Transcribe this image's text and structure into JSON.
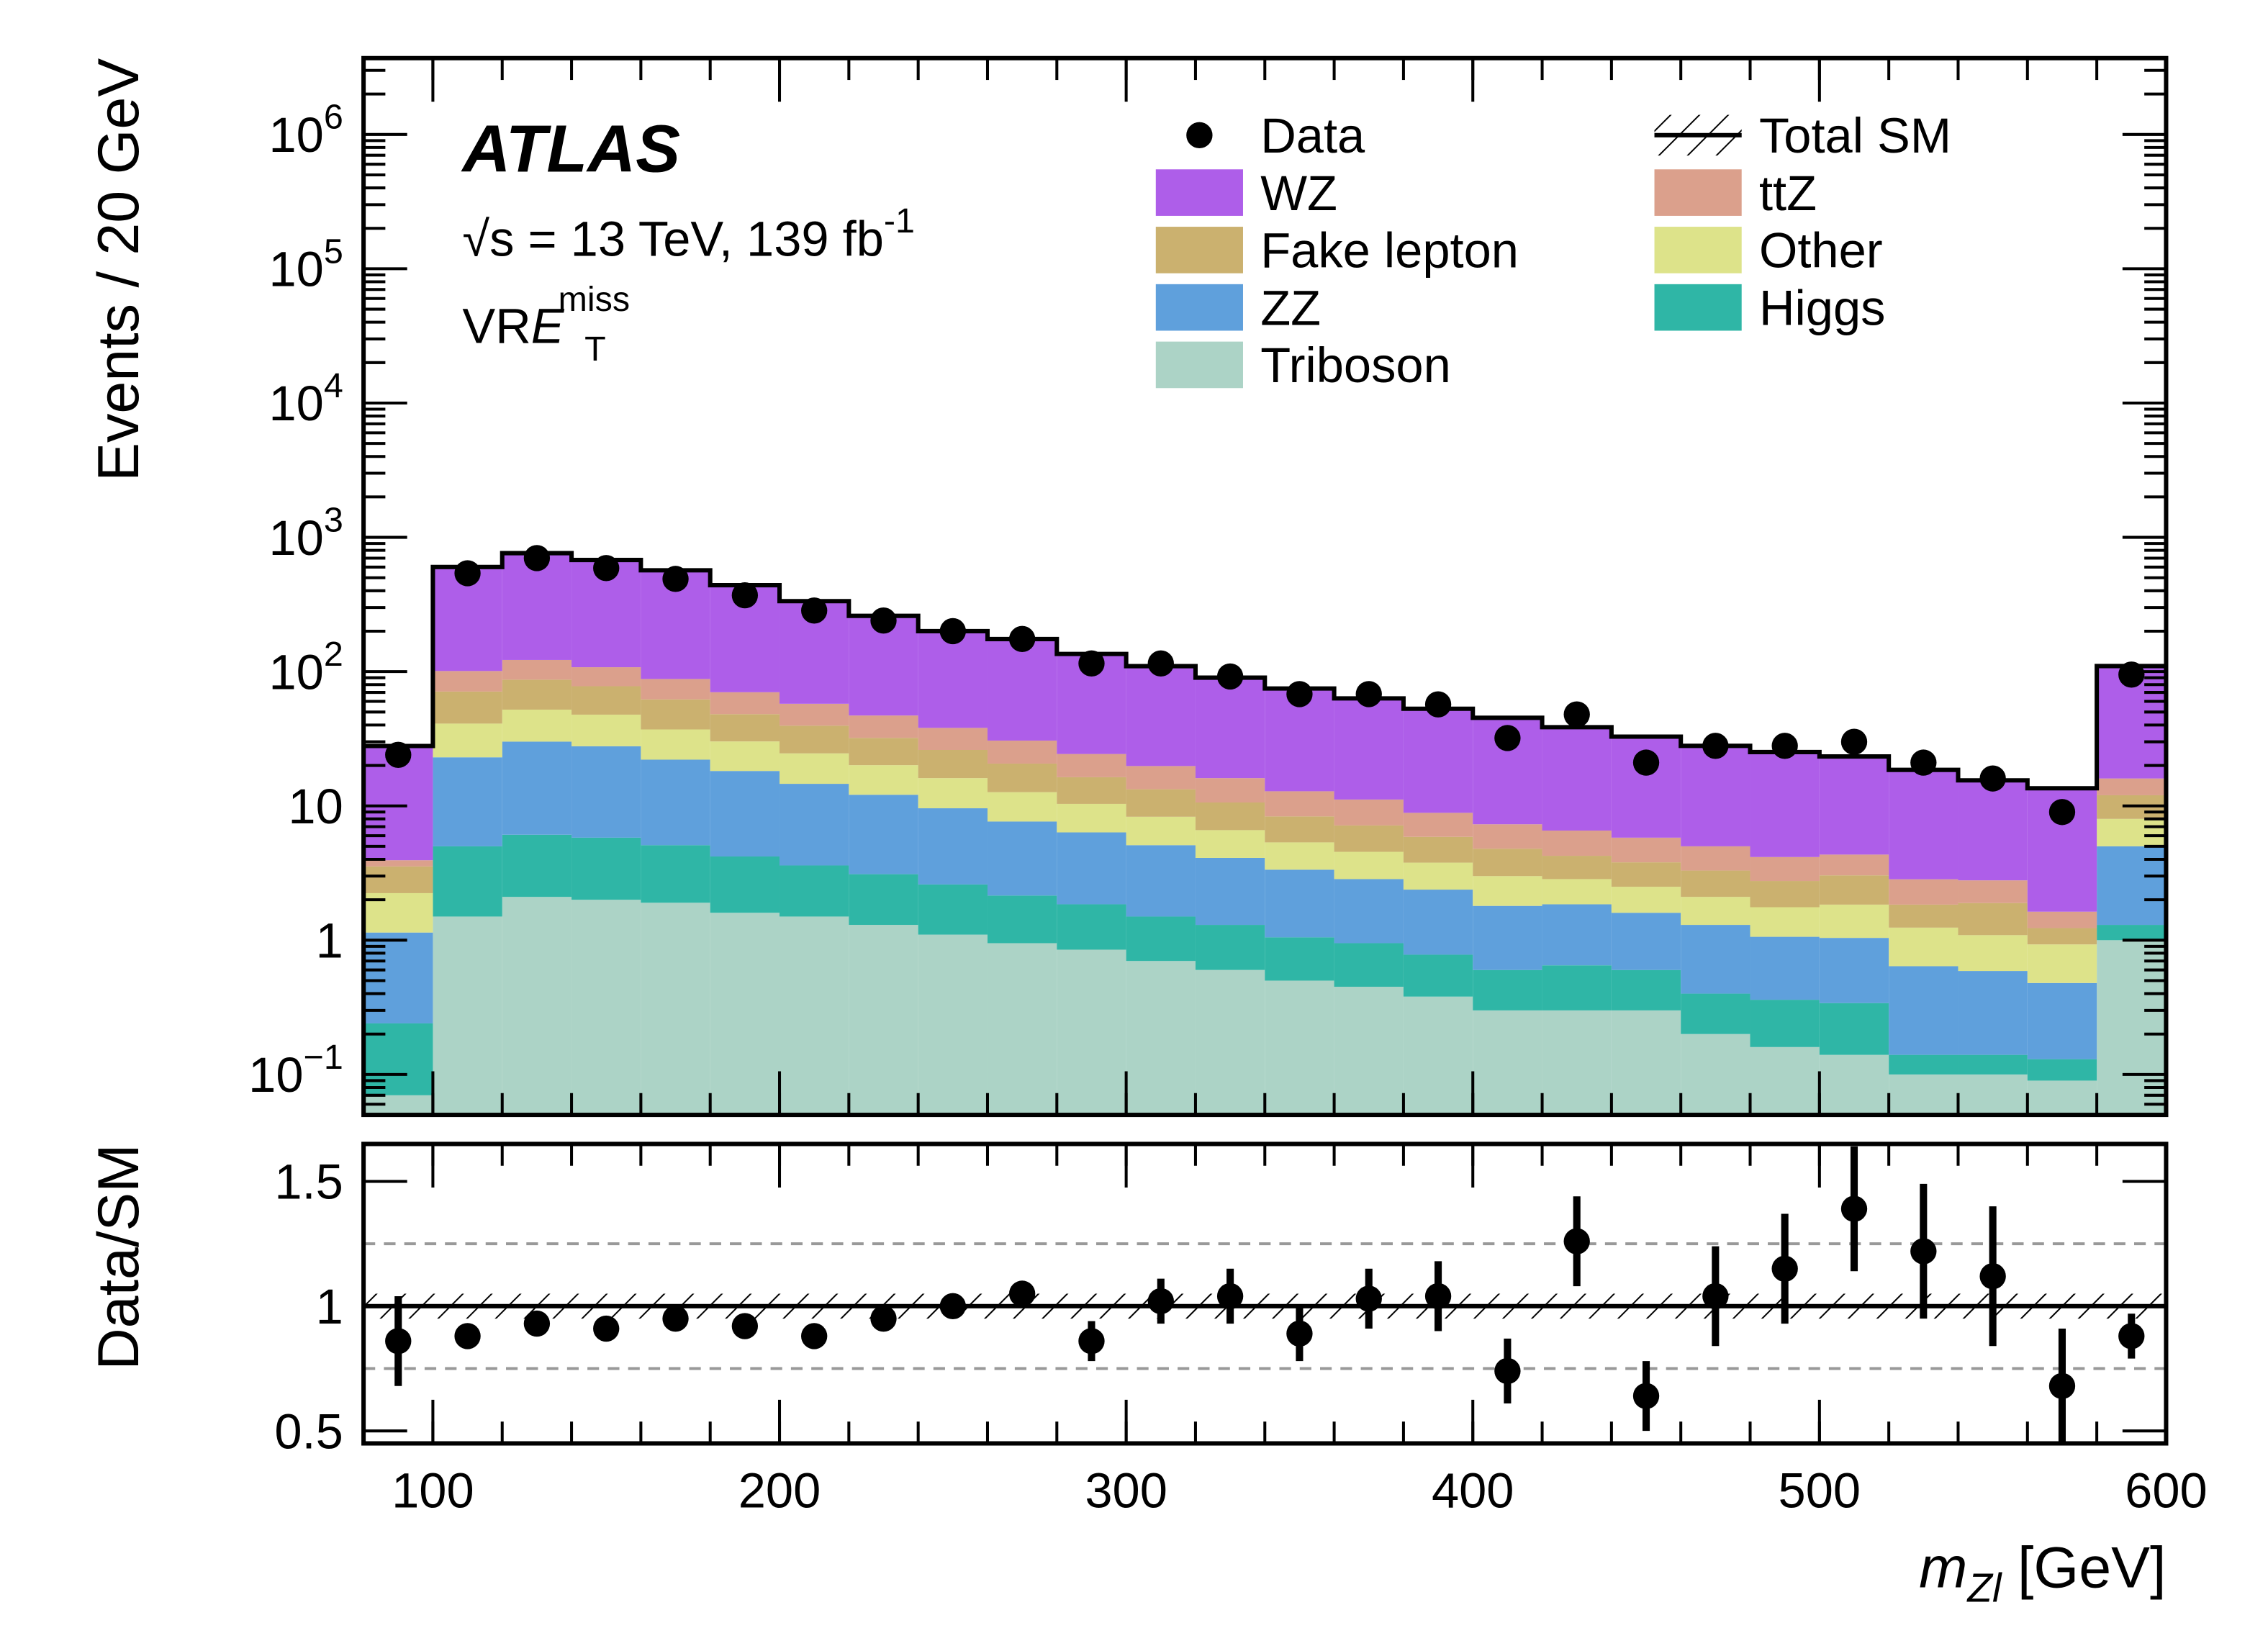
{
  "chart_data": [
    {
      "type": "histogram",
      "ylabel": "Events / 20 GeV",
      "annotations": {
        "experiment": "ATLAS",
        "energy": "√s = 13 TeV, 139 fb",
        "energy_sup": "-1",
        "region": "VR",
        "region_symbol": "E",
        "region_sub": "T",
        "region_sup": "miss"
      },
      "log_y": true,
      "xlim": [
        80,
        600
      ],
      "ylim": [
        0.05,
        3700000
      ],
      "yticks": [
        {
          "value": 0.1,
          "label": "10",
          "sup": "−1"
        },
        1,
        10,
        {
          "value": 100,
          "label": "10",
          "sup": "2"
        },
        {
          "value": 1000,
          "label": "10",
          "sup": "3"
        },
        {
          "value": 10000,
          "label": "10",
          "sup": "4"
        },
        {
          "value": 100000,
          "label": "10",
          "sup": "5"
        },
        {
          "value": 1000000,
          "label": "10",
          "sup": "6"
        }
      ],
      "bins": [
        80,
        100,
        120,
        140,
        160,
        180,
        200,
        220,
        240,
        260,
        280,
        300,
        320,
        340,
        360,
        380,
        400,
        420,
        440,
        460,
        480,
        500,
        520,
        540,
        560,
        580,
        600
      ],
      "series": [
        {
          "name": "Triboson",
          "color": "#acd3c6",
          "values": [
            0.07,
            1.5,
            2.1,
            2.0,
            1.9,
            1.6,
            1.5,
            1.3,
            1.1,
            0.95,
            0.85,
            0.7,
            0.6,
            0.5,
            0.45,
            0.38,
            0.3,
            0.3,
            0.3,
            0.2,
            0.16,
            0.14,
            0.1,
            0.1,
            0.09,
            1.0
          ]
        },
        {
          "name": "Higgs",
          "color": "#2fb6a6",
          "values": [
            0.17,
            3.5,
            4,
            3.8,
            3.2,
            2.6,
            2.1,
            1.8,
            1.5,
            1.2,
            1.0,
            0.8,
            0.7,
            0.55,
            0.5,
            0.4,
            0.3,
            0.35,
            0.3,
            0.2,
            0.2,
            0.2,
            0.04,
            0.04,
            0.04,
            0.3
          ]
        },
        {
          "name": "ZZ",
          "color": "#5fa0dc",
          "values": [
            0.9,
            18,
            24,
            22,
            17,
            14,
            11,
            9,
            7,
            5.5,
            4.5,
            3.6,
            2.8,
            2.3,
            1.9,
            1.6,
            1.2,
            1.2,
            1.0,
            0.9,
            0.7,
            0.7,
            0.5,
            0.45,
            0.35,
            3.7
          ]
        },
        {
          "name": "Other",
          "color": "#dde38a",
          "values": [
            1.1,
            18,
            22,
            20,
            15,
            12,
            10,
            8,
            6.5,
            5,
            4,
            3.2,
            2.5,
            2,
            1.7,
            1.4,
            1.2,
            1.0,
            0.9,
            0.8,
            0.7,
            0.8,
            0.6,
            0.5,
            0.45,
            3
          ]
        },
        {
          "name": "Fake lepton",
          "color": "#cbb16f",
          "values": [
            1.3,
            30,
            35,
            30,
            25,
            18,
            15,
            12,
            10,
            8,
            6,
            5,
            4,
            3,
            2.6,
            2.1,
            1.8,
            1.4,
            1.3,
            1.2,
            1.0,
            1.2,
            0.6,
            0.8,
            0.3,
            4
          ]
        },
        {
          "name": "ttZ",
          "color": "#dba08c",
          "values": [
            0.4,
            30,
            35,
            30,
            26,
            22,
            18,
            15,
            12,
            10,
            8,
            6.5,
            5.5,
            4.5,
            4,
            3,
            2.5,
            2.3,
            2,
            1.7,
            1.4,
            1.3,
            1.0,
            0.9,
            0.4,
            4
          ]
        },
        {
          "name": "WZ",
          "color": "#ae5ee9",
          "values": [
            24,
            500,
            640,
            570,
            480,
            370,
            277,
            213,
            162,
            144,
            111,
            90,
            74,
            62,
            52,
            44,
            38,
            32,
            27,
            23,
            21,
            19,
            15.7,
            12.7,
            11.9,
            94
          ]
        }
      ],
      "data_points": {
        "name": "Data",
        "color": "#000000",
        "values": [
          24,
          540,
          700,
          590,
          490,
          370,
          285,
          240,
          200,
          175,
          115,
          115,
          92,
          68,
          68,
          57,
          32,
          48,
          21,
          28,
          28,
          30,
          21,
          16,
          9,
          95
        ]
      },
      "total_label": "Total SM"
    },
    {
      "type": "scatter",
      "ylabel": "Data/SM",
      "xlabel": "m",
      "xlabel_sub": "Zl",
      "xlabel_unit": " [GeV]",
      "xlim": [
        80,
        600
      ],
      "xticks": [
        100,
        200,
        300,
        400,
        500,
        600
      ],
      "ylim": [
        0.45,
        1.65
      ],
      "yticks": [
        0.5,
        1,
        1.5
      ],
      "ref_lines": [
        0.75,
        1.25
      ],
      "uncertainty_band": 0.05,
      "x": [
        90,
        110,
        130,
        150,
        170,
        190,
        210,
        230,
        250,
        270,
        290,
        310,
        330,
        350,
        370,
        390,
        410,
        430,
        450,
        470,
        490,
        510,
        530,
        550,
        570,
        590
      ],
      "values": [
        0.86,
        0.88,
        0.93,
        0.91,
        0.95,
        0.92,
        0.88,
        0.95,
        1.0,
        1.05,
        0.86,
        1.02,
        1.04,
        0.89,
        1.03,
        1.04,
        0.74,
        1.26,
        0.64,
        1.04,
        1.15,
        1.39,
        1.22,
        1.12,
        0.68,
        0.88
      ],
      "errors": [
        0.18,
        0.04,
        0.04,
        0.04,
        0.04,
        0.04,
        0.04,
        0.04,
        0.04,
        0.04,
        0.08,
        0.09,
        0.11,
        0.11,
        0.12,
        0.14,
        0.13,
        0.18,
        0.14,
        0.2,
        0.22,
        0.25,
        0.27,
        0.28,
        0.23,
        0.09
      ],
      "color": "#000000"
    }
  ]
}
